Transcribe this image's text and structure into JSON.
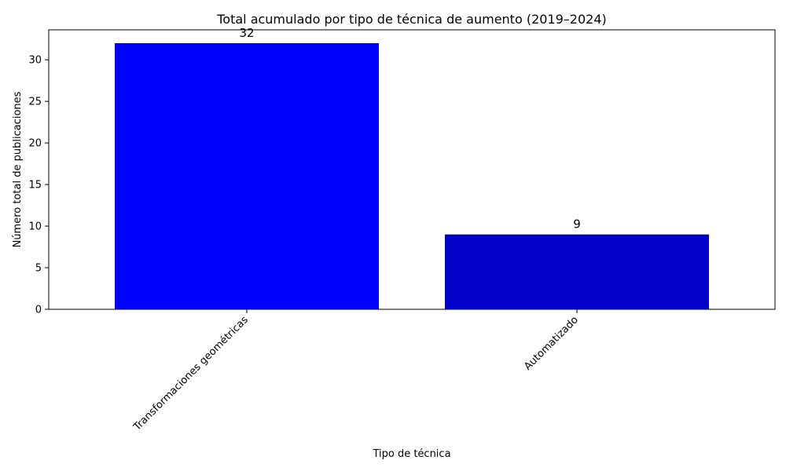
{
  "chart_data": {
    "type": "bar",
    "title": "Total acumulado por tipo de técnica de aumento (2019–2024)",
    "xlabel": "Tipo de técnica",
    "ylabel": "Número total de publicaciones",
    "categories": [
      "Transformaciones geométricas",
      "Automatizado"
    ],
    "values": [
      32,
      9
    ],
    "data_labels": [
      "32",
      "9"
    ],
    "colors": [
      "#0000ff",
      "#0000c8"
    ],
    "ylim": [
      0,
      33.6
    ],
    "yticks": [
      0,
      5,
      10,
      15,
      20,
      25,
      30
    ],
    "grid": false,
    "legend": "none"
  }
}
